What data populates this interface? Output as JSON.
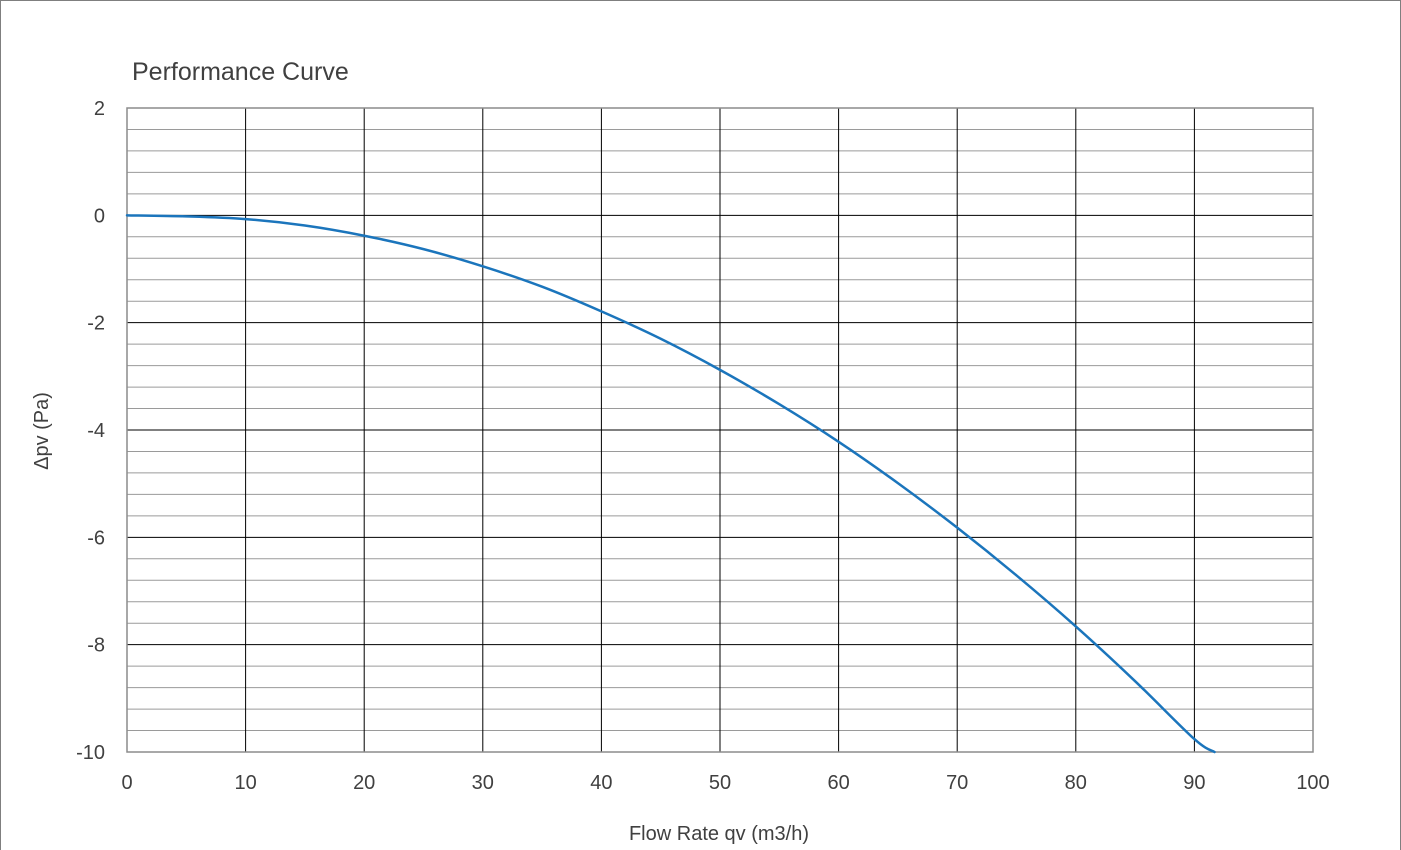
{
  "chart_data": {
    "type": "line",
    "title": "Performance Curve",
    "xlabel": "Flow Rate qv (m3/h)",
    "ylabel": "Δpv (Pa)",
    "xlim": [
      0,
      100
    ],
    "ylim": [
      -10,
      2
    ],
    "x_ticks": [
      "0",
      "10",
      "20",
      "30",
      "40",
      "50",
      "60",
      "70",
      "80",
      "90",
      "100"
    ],
    "y_ticks": [
      "2",
      "0",
      "-2",
      "-4",
      "-6",
      "-8",
      "-10"
    ],
    "x_major_step": 10,
    "y_major_step": 2,
    "y_minor_step": 0.4,
    "grid": true,
    "legend": "none",
    "colors": {
      "series": "#1b75bc",
      "major_grid": "#000000",
      "minor_grid": "#9a9a9a",
      "frame": "#8c8c8c",
      "text": "#404040"
    },
    "series": [
      {
        "x": [
          0,
          5,
          10,
          15,
          20,
          25,
          30,
          35,
          40,
          45,
          50,
          55,
          60,
          65,
          70,
          75,
          80,
          85,
          90,
          91.7
        ],
        "y": [
          0.0,
          -0.02,
          -0.07,
          -0.19,
          -0.38,
          -0.63,
          -0.95,
          -1.33,
          -1.79,
          -2.3,
          -2.88,
          -3.52,
          -4.22,
          -4.99,
          -5.82,
          -6.71,
          -7.66,
          -8.68,
          -9.76,
          -10.0
        ]
      }
    ]
  }
}
